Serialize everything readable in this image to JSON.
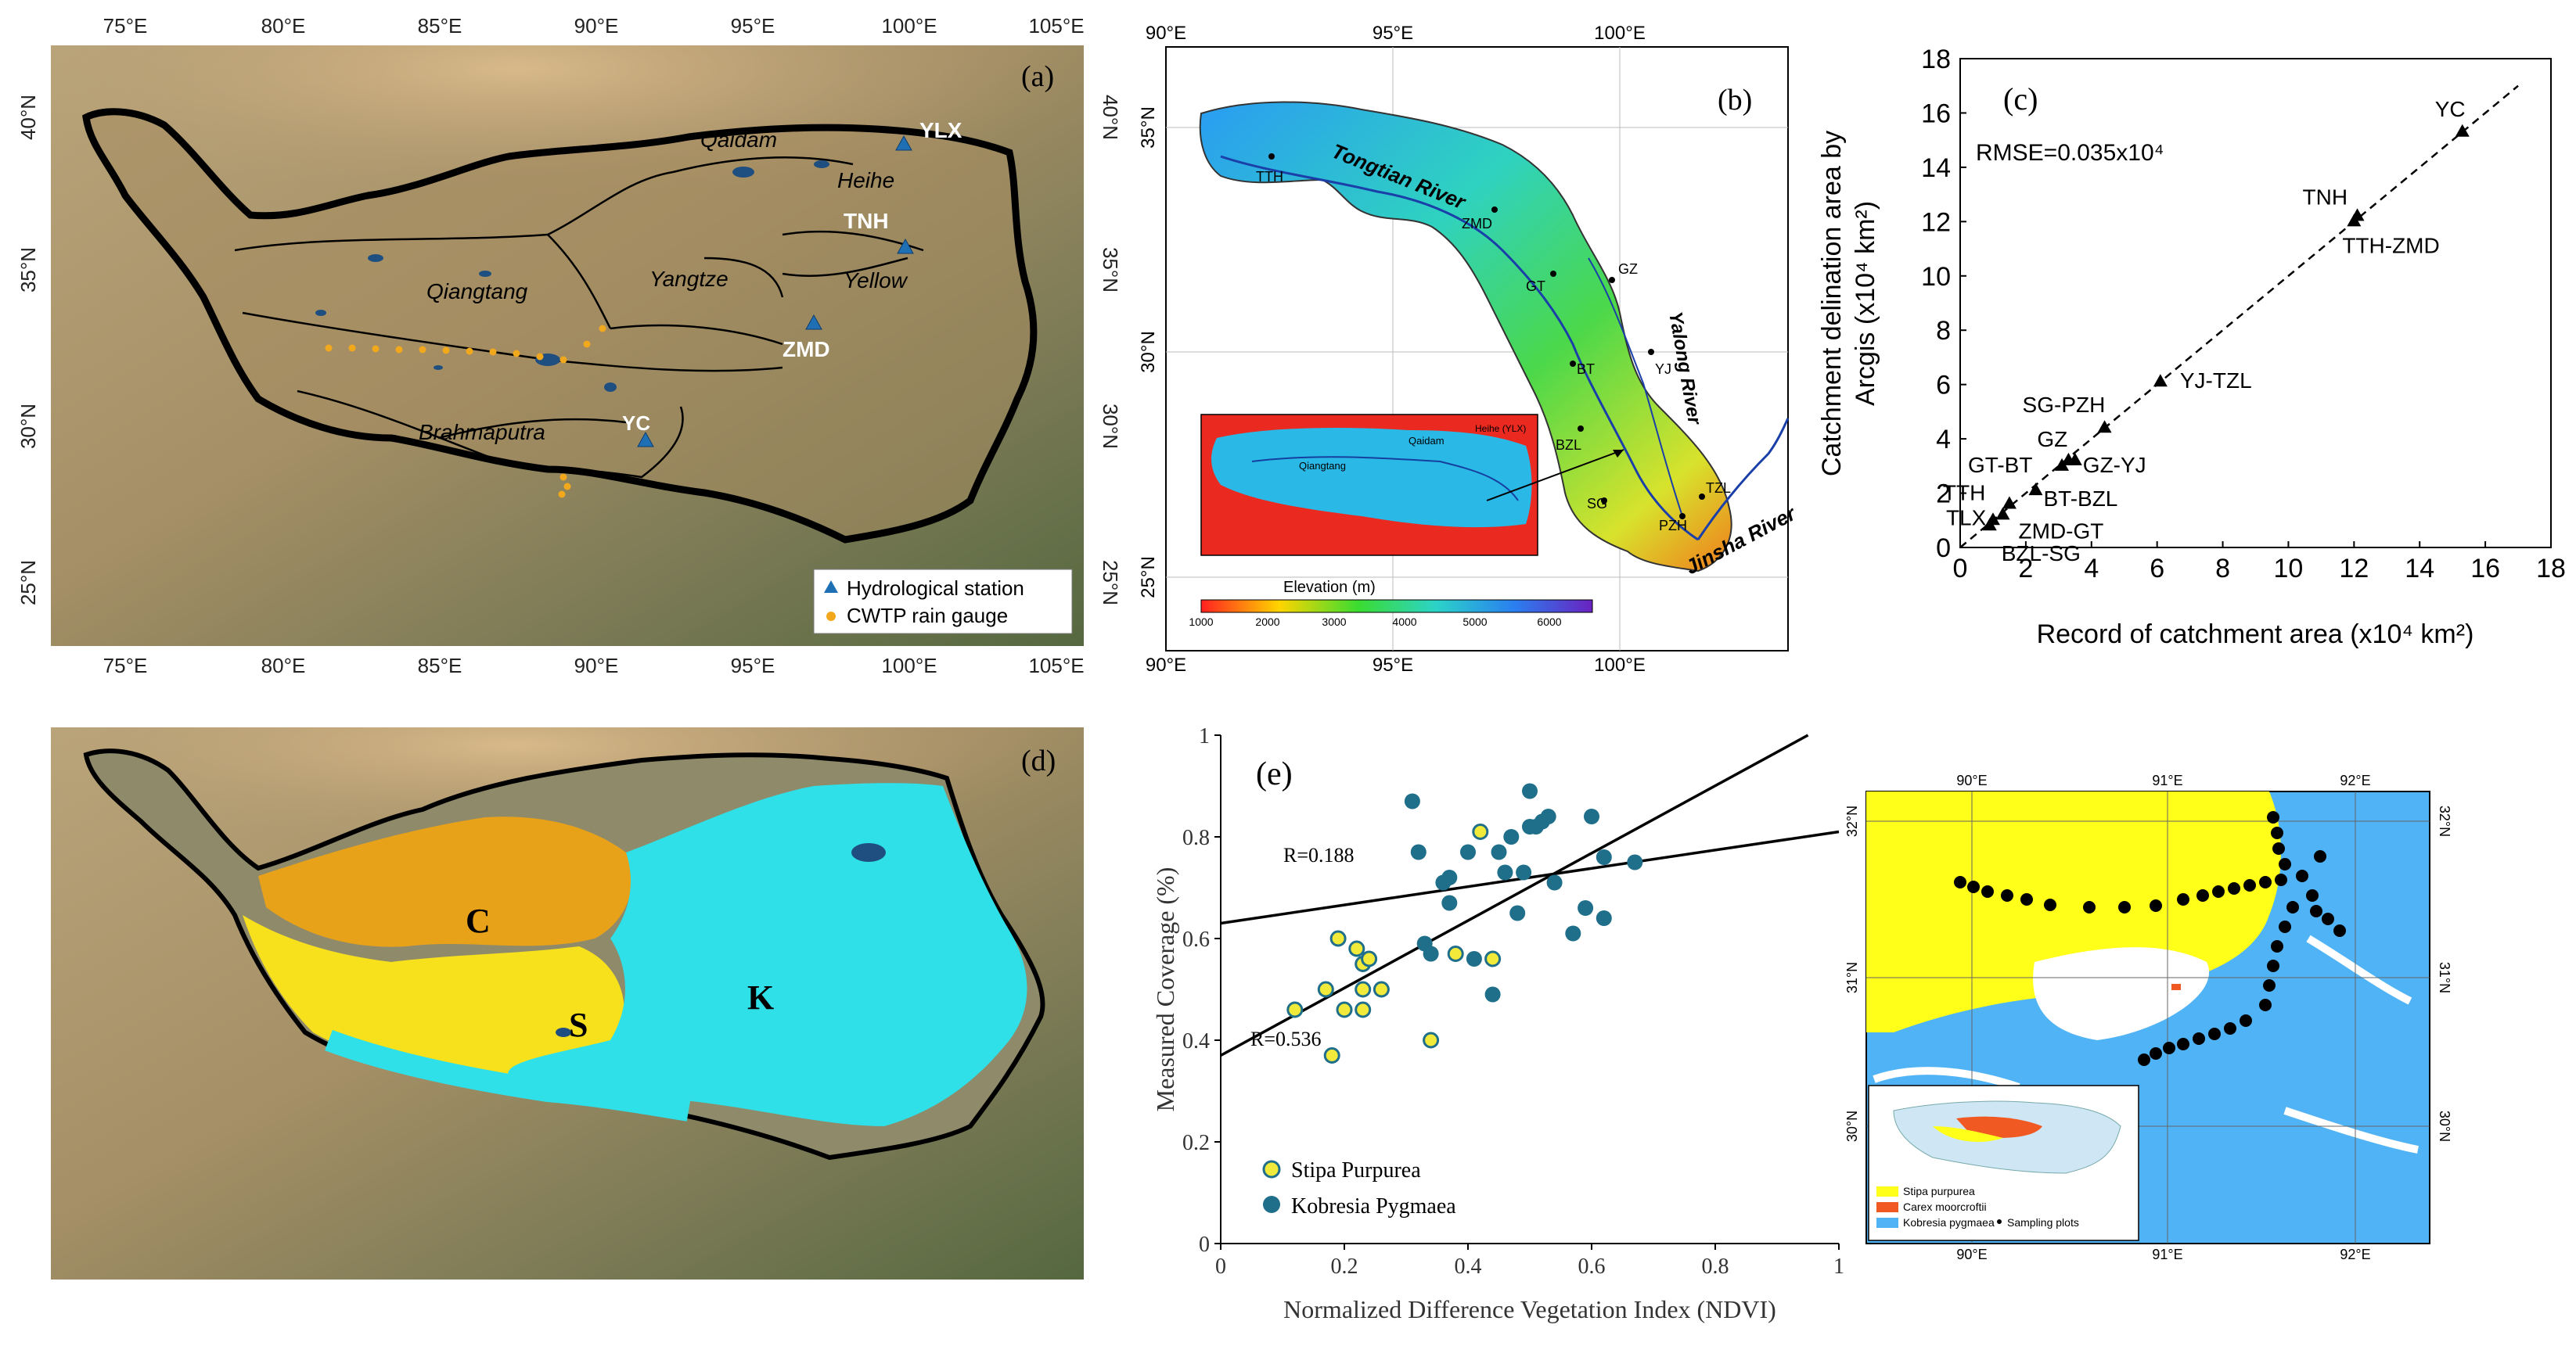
{
  "panel_a": {
    "label": "(a)",
    "lon_ticks": [
      "75°E",
      "80°E",
      "85°E",
      "90°E",
      "95°E",
      "100°E",
      "105°E"
    ],
    "lat_ticks": [
      "40°N",
      "35°N",
      "30°N",
      "25°N"
    ],
    "regions": [
      "Qaidam",
      "Heihe",
      "Qiangtang",
      "Yangtze",
      "Yellow",
      "Brahmaputra"
    ],
    "stations": [
      "YLX",
      "TNH",
      "ZMD",
      "YC"
    ],
    "legend": {
      "station": "Hydrological station",
      "gauge": "CWTP rain gauge"
    },
    "colors": {
      "station": "#1f6fb5",
      "gauge": "#f2a81d"
    }
  },
  "panel_b": {
    "label": "(b)",
    "lon_ticks": [
      "90°E",
      "95°E",
      "100°E"
    ],
    "lat_ticks": [
      "35°N",
      "30°N",
      "25°N"
    ],
    "rivers": [
      "Tongtian River",
      "Yalong River",
      "Jinsha River"
    ],
    "stations": [
      "TTH",
      "ZMD",
      "GT",
      "GZ",
      "BT",
      "YJ",
      "BZL",
      "SG",
      "TZL",
      "PZH"
    ],
    "colorbar_title": "Elevation (m)",
    "colorbar_ticks": [
      "1000",
      "2000",
      "3000",
      "4000",
      "5000",
      "6000"
    ],
    "inset_labels": [
      "Qaidam",
      "Heihe (YLX)",
      "Qiangtang"
    ]
  },
  "panel_c": {
    "label": "(c)",
    "rmse": "RMSE=0.035x10⁴",
    "chart_data": {
      "type": "scatter",
      "title": "",
      "xlabel": "Record of catchment area (x10⁴ km²)",
      "ylabel_line1": "Catchment delination area by",
      "ylabel_line2": "Arcgis (x10⁴ km²)",
      "xlim": [
        0,
        18
      ],
      "ylim": [
        0,
        18
      ],
      "ticks": [
        "0",
        "2",
        "4",
        "6",
        "8",
        "10",
        "12",
        "14",
        "16",
        "18"
      ],
      "points": [
        {
          "name": "YC",
          "x": 15.3,
          "y": 15.3
        },
        {
          "name": "TNH",
          "x": 12.1,
          "y": 12.2
        },
        {
          "name": "TTH-ZMD",
          "x": 12.0,
          "y": 12.0
        },
        {
          "name": "YJ-TZL",
          "x": 6.1,
          "y": 6.1
        },
        {
          "name": "SG-PZH",
          "x": 4.4,
          "y": 4.4
        },
        {
          "name": "GZ",
          "x": 3.3,
          "y": 3.2
        },
        {
          "name": "GZ-YJ",
          "x": 3.5,
          "y": 3.2
        },
        {
          "name": "GT-BT",
          "x": 3.1,
          "y": 3.0
        },
        {
          "name": "TTH",
          "x": 1.5,
          "y": 1.6
        },
        {
          "name": "BT-BZL",
          "x": 2.3,
          "y": 2.1
        },
        {
          "name": "TLX",
          "x": 1.0,
          "y": 1.0
        },
        {
          "name": "ZMD-GT",
          "x": 1.3,
          "y": 1.2
        },
        {
          "name": "BZL-SG",
          "x": 0.9,
          "y": 0.8
        }
      ]
    }
  },
  "panel_d": {
    "label": "(d)",
    "zones": [
      "C",
      "S",
      "K"
    ],
    "colors": {
      "C": "#e8a21a",
      "S": "#f7e11c",
      "K": "#2fe0e8"
    }
  },
  "panel_e": {
    "label": "(e)",
    "r_kobresia": "R=0.188",
    "r_stipa": "R=0.536",
    "chart_data": {
      "type": "scatter",
      "xlabel": "Normalized Difference Vegetation Index (NDVI)",
      "ylabel": "Measured Coverage (%)",
      "xlim": [
        0,
        1
      ],
      "ylim": [
        0,
        1
      ],
      "xticks": [
        "0",
        "0.2",
        "0.4",
        "0.6",
        "0.8",
        "1"
      ],
      "yticks": [
        "0",
        "0.2",
        "0.4",
        "0.6",
        "0.8",
        "1"
      ],
      "series": [
        {
          "name": "Stipa Purpurea",
          "color": "#f2ea3a",
          "points": [
            [
              0.12,
              0.46
            ],
            [
              0.17,
              0.5
            ],
            [
              0.18,
              0.37
            ],
            [
              0.19,
              0.6
            ],
            [
              0.2,
              0.46
            ],
            [
              0.22,
              0.58
            ],
            [
              0.23,
              0.46
            ],
            [
              0.23,
              0.5
            ],
            [
              0.23,
              0.55
            ],
            [
              0.24,
              0.56
            ],
            [
              0.26,
              0.5
            ],
            [
              0.34,
              0.4
            ],
            [
              0.38,
              0.57
            ],
            [
              0.42,
              0.81
            ],
            [
              0.44,
              0.56
            ]
          ]
        },
        {
          "name": "Kobresia Pygmaea",
          "color": "#1f6f8b",
          "points": [
            [
              0.31,
              0.87
            ],
            [
              0.32,
              0.77
            ],
            [
              0.33,
              0.59
            ],
            [
              0.34,
              0.57
            ],
            [
              0.36,
              0.71
            ],
            [
              0.37,
              0.67
            ],
            [
              0.37,
              0.72
            ],
            [
              0.4,
              0.77
            ],
            [
              0.41,
              0.56
            ],
            [
              0.44,
              0.49
            ],
            [
              0.45,
              0.77
            ],
            [
              0.46,
              0.73
            ],
            [
              0.47,
              0.8
            ],
            [
              0.48,
              0.65
            ],
            [
              0.49,
              0.73
            ],
            [
              0.5,
              0.89
            ],
            [
              0.5,
              0.82
            ],
            [
              0.51,
              0.82
            ],
            [
              0.52,
              0.83
            ],
            [
              0.53,
              0.84
            ],
            [
              0.54,
              0.71
            ],
            [
              0.57,
              0.61
            ],
            [
              0.59,
              0.66
            ],
            [
              0.6,
              0.84
            ],
            [
              0.62,
              0.76
            ],
            [
              0.62,
              0.64
            ],
            [
              0.67,
              0.75
            ]
          ]
        }
      ],
      "fits": [
        {
          "name": "Kobresia Pygmaea",
          "label": "R=0.188",
          "x": [
            0,
            1
          ],
          "y": [
            0.63,
            0.81
          ]
        },
        {
          "name": "Stipa Purpurea",
          "label": "R=0.536",
          "x": [
            0,
            0.95
          ],
          "y": [
            0.37,
            1.0
          ]
        }
      ]
    },
    "inset_map": {
      "lon_ticks": [
        "90°E",
        "91°E",
        "92°E"
      ],
      "lat_ticks": [
        "32°N",
        "31°N",
        "30°N"
      ],
      "legend": [
        "Stipa purpurea",
        "Carex moorcroftii",
        "Kobresia pygmaea",
        "Sampling plots"
      ]
    }
  }
}
